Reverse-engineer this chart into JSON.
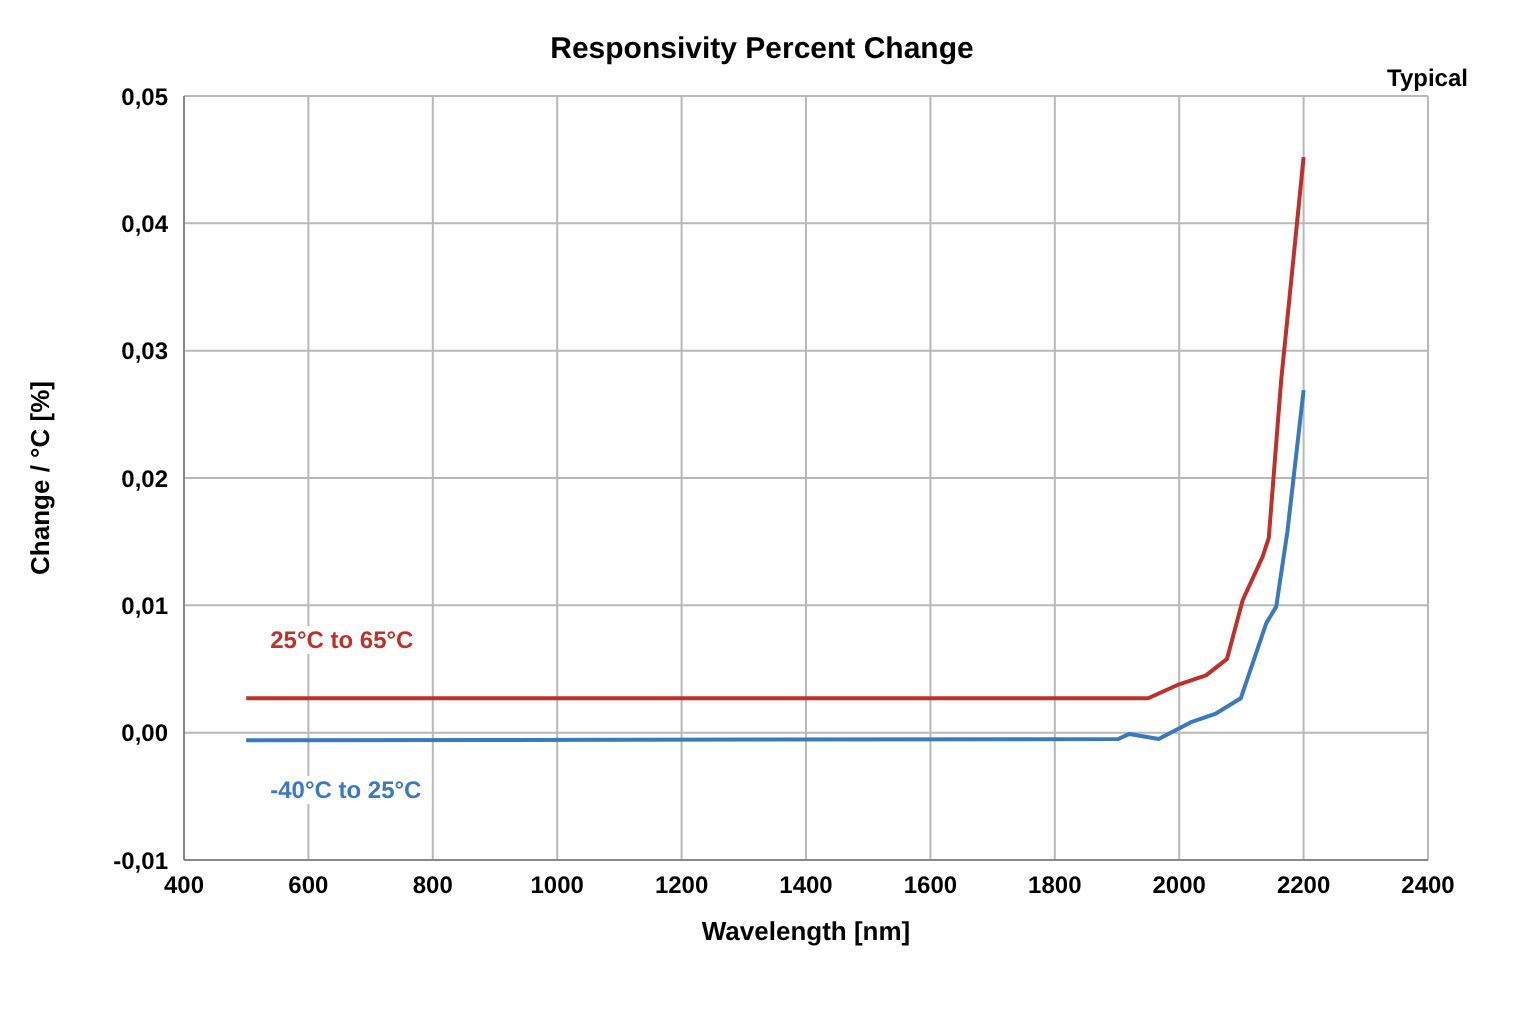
{
  "chart_data": {
    "type": "line",
    "title": "Responsivity Percent Change",
    "xlabel": "Wavelength [nm]",
    "ylabel": "Change / °C  [%]",
    "annotations": [
      "Typical"
    ],
    "xlim": [
      400,
      2400
    ],
    "xticks": [
      400,
      600,
      800,
      1000,
      1200,
      1400,
      1600,
      1800,
      2000,
      2200,
      2400
    ],
    "ylim": [
      -0.01,
      0.05
    ],
    "yticks": [
      {
        "value": -0.01,
        "label": "-0,01"
      },
      {
        "value": 0,
        "label": "0,00"
      },
      {
        "value": 0.01,
        "label": "0,01"
      },
      {
        "value": 0.02,
        "label": "0,02"
      },
      {
        "value": 0.03,
        "label": "0,03"
      },
      {
        "value": 0.04,
        "label": "0,04"
      },
      {
        "value": 0.05,
        "label": "0,05"
      }
    ],
    "grid": true,
    "marker": "none",
    "line_style": "solid",
    "series": [
      {
        "name": "25°C to 65°C",
        "color": "#c0302a",
        "x": [
          500,
          1950,
          2000,
          2043,
          2077,
          2102,
          2134,
          2144,
          2164,
          2184,
          2200
        ],
        "values": [
          0.0027,
          0.0027,
          0.0038,
          0.0045,
          0.0058,
          0.0104,
          0.0138,
          0.0153,
          0.0277,
          0.0374,
          0.0452
        ]
      },
      {
        "name": "-40°C to 25°C",
        "color": "#3a78c0",
        "x": [
          500,
          1902,
          1920,
          1967,
          2018,
          2059,
          2099,
          2140,
          2156,
          2174,
          2200
        ],
        "values": [
          -0.0006,
          -0.0005,
          -0.0001,
          -0.0005,
          0.0008,
          0.0015,
          0.0027,
          0.0086,
          0.0099,
          0.0158,
          0.0269
        ]
      }
    ]
  }
}
